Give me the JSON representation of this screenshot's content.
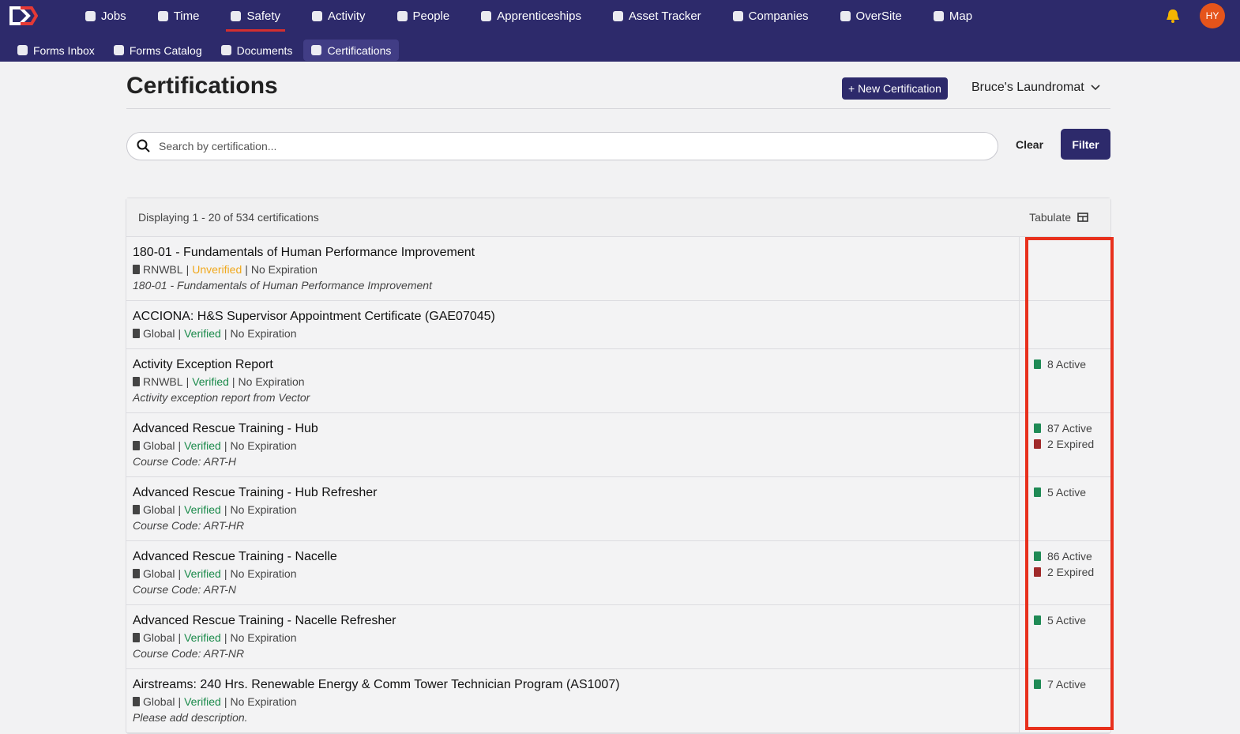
{
  "nav": {
    "items": [
      "Jobs",
      "Time",
      "Safety",
      "Activity",
      "People",
      "Apprenticeships",
      "Asset Tracker",
      "Companies",
      "OverSite",
      "Map"
    ],
    "active": 2,
    "avatar": "HY"
  },
  "subnav": {
    "items": [
      "Forms Inbox",
      "Forms Catalog",
      "Documents",
      "Certifications"
    ],
    "active": 3
  },
  "header": {
    "title": "Certifications",
    "new_button": "+ New Certification",
    "company": "Bruce's Laundromat"
  },
  "search": {
    "placeholder": "Search by certification...",
    "clear": "Clear",
    "filter": "Filter"
  },
  "list": {
    "summary": "Displaying 1 - 20 of 534 certifications",
    "tabulate": "Tabulate",
    "separator": "|",
    "rows": [
      {
        "title": "180-01 - Fundamentals of Human Performance Improvement",
        "scope": "RNWBL",
        "status": "Unverified",
        "status_color": "#f0a81c",
        "expiration": "No Expiration",
        "description": "180-01 - Fundamentals of Human Performance Improvement",
        "counts": []
      },
      {
        "title": "ACCIONA: H&S Supervisor Appointment Certificate (GAE07045)",
        "scope": "Global",
        "status": "Verified",
        "status_color": "#1a8a4a",
        "expiration": "No Expiration",
        "counts": []
      },
      {
        "title": "Activity Exception Report",
        "scope": "RNWBL",
        "status": "Verified",
        "status_color": "#1a8a4a",
        "expiration": "No Expiration",
        "description": "Activity exception report from Vector",
        "counts": [
          {
            "label": "8 Active",
            "color": "#1f8a55"
          }
        ]
      },
      {
        "title": "Advanced Rescue Training - Hub",
        "scope": "Global",
        "status": "Verified",
        "status_color": "#1a8a4a",
        "expiration": "No Expiration",
        "description": "Course Code: ART-H",
        "counts": [
          {
            "label": "87 Active",
            "color": "#1f8a55"
          },
          {
            "label": "2 Expired",
            "color": "#a02a2a"
          }
        ]
      },
      {
        "title": "Advanced Rescue Training - Hub Refresher",
        "scope": "Global",
        "status": "Verified",
        "status_color": "#1a8a4a",
        "expiration": "No Expiration",
        "description": "Course Code: ART-HR",
        "counts": [
          {
            "label": "5 Active",
            "color": "#1f8a55"
          }
        ]
      },
      {
        "title": "Advanced Rescue Training - Nacelle",
        "scope": "Global",
        "status": "Verified",
        "status_color": "#1a8a4a",
        "expiration": "No Expiration",
        "description": "Course Code: ART-N",
        "counts": [
          {
            "label": "86 Active",
            "color": "#1f8a55"
          },
          {
            "label": "2 Expired",
            "color": "#a02a2a"
          }
        ]
      },
      {
        "title": "Advanced Rescue Training - Nacelle Refresher",
        "scope": "Global",
        "status": "Verified",
        "status_color": "#1a8a4a",
        "expiration": "No Expiration",
        "description": "Course Code: ART-NR",
        "counts": [
          {
            "label": "5 Active",
            "color": "#1f8a55"
          }
        ]
      },
      {
        "title": "Airstreams: 240 Hrs. Renewable Energy & Comm Tower Technician Program (AS1007)",
        "scope": "Global",
        "status": "Verified",
        "status_color": "#1a8a4a",
        "expiration": "No Expiration",
        "description": "Please add description.",
        "counts": [
          {
            "label": "7 Active",
            "color": "#1f8a55"
          }
        ]
      }
    ]
  }
}
